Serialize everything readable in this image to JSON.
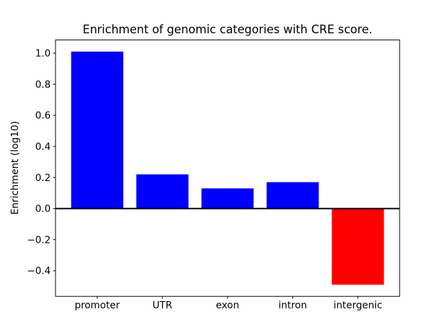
{
  "figure": {
    "background_color": "#ffffff"
  },
  "chart_data": {
    "type": "bar",
    "title": "Enrichment of genomic categories with CRE score.",
    "xlabel": "",
    "ylabel": "Enrichment (log10)",
    "categories": [
      "promoter",
      "UTR",
      "exon",
      "intron",
      "intergenic"
    ],
    "values": [
      1.01,
      0.22,
      0.13,
      0.17,
      -0.49
    ],
    "bar_colors": [
      "#0000ff",
      "#0000ff",
      "#0000ff",
      "#0000ff",
      "#ff0000"
    ],
    "positive_color": "#0000ff",
    "negative_color": "#ff0000",
    "bar_width": 0.8,
    "xlim": [
      -0.64,
      4.64
    ],
    "ylim": [
      -0.565,
      1.085
    ],
    "yticks": [
      1.0,
      0.8,
      0.6,
      0.4,
      0.2,
      0.0,
      -0.2,
      -0.4
    ],
    "ytick_labels": [
      "1.0",
      "0.8",
      "0.6",
      "0.4",
      "0.2",
      "0.0",
      "−0.2",
      "−0.4"
    ],
    "zero_line": true,
    "zero_line_color": "#000000",
    "grid": false,
    "legend": null,
    "axis_color": "#000000"
  }
}
